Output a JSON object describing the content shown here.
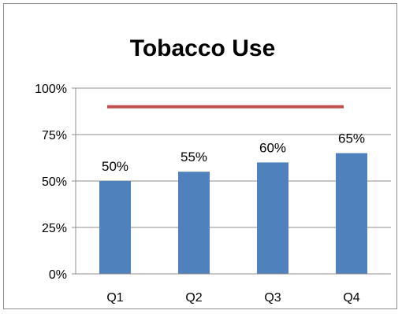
{
  "chart_data": {
    "type": "bar",
    "title": "Tobacco Use",
    "categories": [
      "Q1",
      "Q2",
      "Q3",
      "Q4"
    ],
    "series": [
      {
        "values": [
          50,
          55,
          60,
          65
        ],
        "data_labels": [
          "50%",
          "55%",
          "60%",
          "65%"
        ],
        "color": "#4f81bd"
      }
    ],
    "target_line": {
      "value": 90,
      "color": "#c0504d"
    },
    "y_ticks": [
      0,
      25,
      50,
      75,
      100
    ],
    "y_tick_labels": [
      "0%",
      "25%",
      "50%",
      "75%",
      "100%"
    ],
    "ylim": [
      0,
      100
    ],
    "grid": true,
    "legend": "none",
    "xlabel": "",
    "ylabel": ""
  }
}
